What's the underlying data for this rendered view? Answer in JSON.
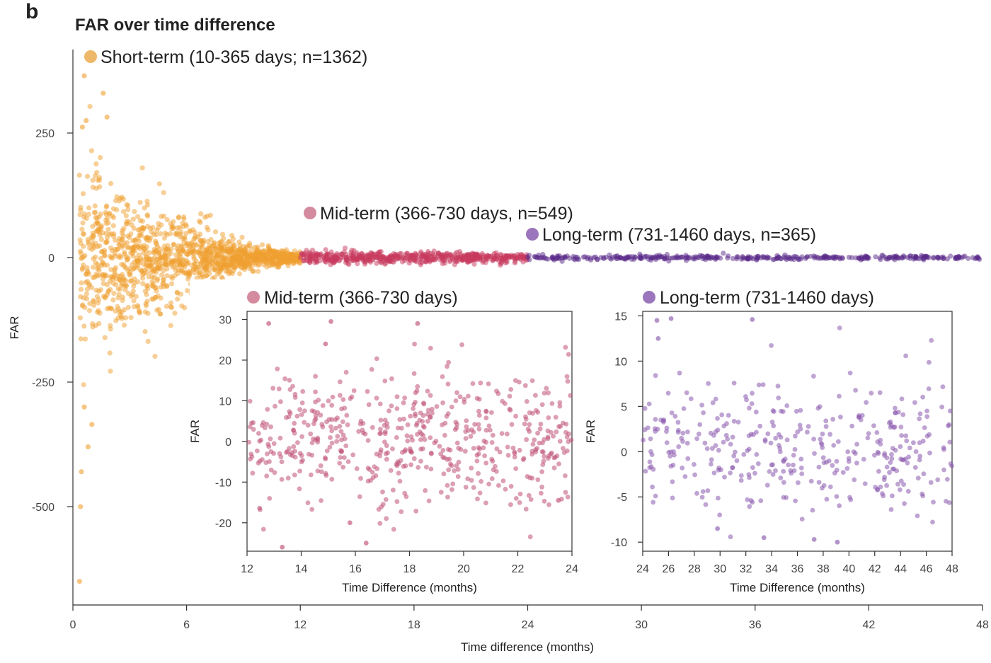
{
  "panel_label": "b",
  "chart_data": [
    {
      "type": "scatter",
      "title": "FAR over time difference",
      "xlabel": "Time difference (months)",
      "ylabel": "FAR",
      "xlim": [
        0,
        48
      ],
      "ylim": [
        -650,
        380
      ],
      "xticks": [
        0,
        6,
        12,
        18,
        24,
        30,
        36,
        42,
        48
      ],
      "yticks": [
        250,
        0,
        -250,
        -500
      ],
      "grid": false,
      "legend_placement": "inline",
      "series": [
        {
          "name": "Short-term (10-365 days; n=1362)",
          "color": "#F0A030",
          "marker_color": "#EDB86A",
          "n": 1362,
          "x_range": [
            0.33,
            12
          ],
          "spread_start": 200,
          "spread_end": 12
        },
        {
          "name": "Mid-term (366-730 days, n=549)",
          "color": "#C83A5E",
          "marker_color": "#D48BA0",
          "n": 549,
          "x_range": [
            12,
            24
          ],
          "spread_start": 14,
          "spread_end": 10
        },
        {
          "name": "Long-term (731-1460 days, n=365)",
          "color": "#5A2A8A",
          "marker_color": "#9B76BC",
          "n": 365,
          "x_range": [
            24,
            48
          ],
          "spread_start": 6,
          "spread_end": 4
        }
      ],
      "outliers": [
        {
          "x": 0.6,
          "y": 365
        },
        {
          "x": 1.6,
          "y": 330
        },
        {
          "x": 1.8,
          "y": 282
        },
        {
          "x": 0.7,
          "y": 275
        },
        {
          "x": 0.5,
          "y": 262
        },
        {
          "x": 0.6,
          "y": -300
        },
        {
          "x": 1.0,
          "y": -335
        },
        {
          "x": 0.8,
          "y": -380
        },
        {
          "x": 0.45,
          "y": -430
        },
        {
          "x": 0.4,
          "y": -500
        },
        {
          "x": 0.35,
          "y": -650
        }
      ]
    },
    {
      "type": "scatter",
      "title": "Mid-term (366-730 days)",
      "xlabel": "Time Difference (months)",
      "ylabel": "FAR",
      "xlim": [
        12,
        24
      ],
      "ylim": [
        -27,
        32
      ],
      "xticks": [
        12,
        14,
        16,
        18,
        20,
        22,
        24
      ],
      "yticks": [
        30,
        20,
        10,
        0,
        -10,
        -20
      ],
      "grid": false,
      "color": "#C05075",
      "n": 549,
      "notable": [
        {
          "x": 12.8,
          "y": 29
        },
        {
          "x": 15.1,
          "y": 29.5
        },
        {
          "x": 18.3,
          "y": 29
        },
        {
          "x": 14.9,
          "y": 24
        },
        {
          "x": 13.3,
          "y": -26
        },
        {
          "x": 16.4,
          "y": -25
        },
        {
          "x": 15.8,
          "y": -20
        },
        {
          "x": 23.5,
          "y": -14.5
        }
      ]
    },
    {
      "type": "scatter",
      "title": "Long-term (731-1460 days)",
      "xlabel": "Time Difference (months)",
      "ylabel": "FAR",
      "xlim": [
        24,
        48
      ],
      "ylim": [
        -11,
        15.5
      ],
      "xticks": [
        24,
        26,
        28,
        30,
        32,
        34,
        36,
        38,
        40,
        42,
        44,
        46,
        48
      ],
      "yticks": [
        15,
        10,
        5,
        0,
        -5,
        -10
      ],
      "grid": false,
      "color": "#8A5AAE",
      "n": 365,
      "notable": [
        {
          "x": 25.1,
          "y": 14.5
        },
        {
          "x": 26.2,
          "y": 14.7
        },
        {
          "x": 32.5,
          "y": 14.6
        },
        {
          "x": 25.2,
          "y": 12.5
        },
        {
          "x": 33.4,
          "y": -9.5
        },
        {
          "x": 37.3,
          "y": -9.7
        },
        {
          "x": 39.1,
          "y": -10
        },
        {
          "x": 29.8,
          "y": -8.5
        }
      ]
    }
  ]
}
